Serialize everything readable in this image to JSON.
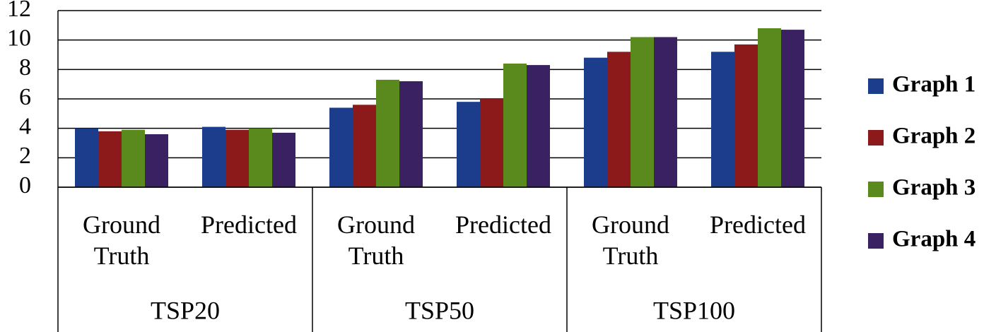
{
  "chart_data": {
    "type": "bar",
    "categories": [
      "Ground Truth",
      "Predicted",
      "Ground Truth",
      "Predicted",
      "Ground Truth",
      "Predicted"
    ],
    "groups": [
      "TSP20",
      "TSP50",
      "TSP100"
    ],
    "series": [
      {
        "name": "Graph 1",
        "color": "#1c3c8c",
        "values": [
          4.0,
          4.1,
          5.4,
          5.8,
          8.8,
          9.2
        ]
      },
      {
        "name": "Graph 2",
        "color": "#8c1a1a",
        "values": [
          3.8,
          3.9,
          5.6,
          6.0,
          9.2,
          9.7
        ]
      },
      {
        "name": "Graph 3",
        "color": "#5a8a1e",
        "values": [
          3.9,
          4.0,
          7.3,
          8.4,
          10.2,
          10.8
        ]
      },
      {
        "name": "Graph 4",
        "color": "#3a2262",
        "values": [
          3.6,
          3.7,
          7.2,
          8.3,
          10.2,
          10.7
        ]
      }
    ],
    "ylim": [
      0,
      12
    ],
    "yticks": [
      0,
      2,
      4,
      6,
      8,
      10,
      12
    ],
    "grid": true,
    "legend": "right"
  }
}
